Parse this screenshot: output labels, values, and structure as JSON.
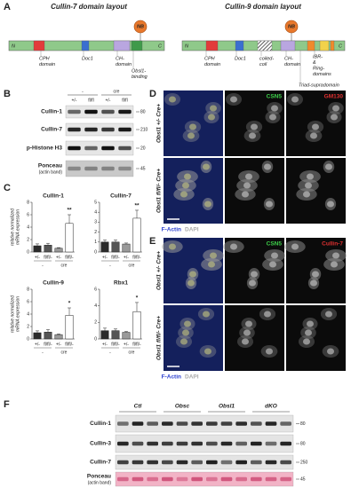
{
  "panel_labels": [
    "A",
    "B",
    "C",
    "D",
    "E",
    "F"
  ],
  "panel_a": [
    {
      "title": "Cullin-7 domain layout",
      "n": "N",
      "c": "C",
      "nb": "NB",
      "labels": [
        [
          "CPH",
          "domain"
        ],
        [
          "Doc1"
        ],
        [
          "CH-",
          "domain"
        ],
        [
          "Obsl1-",
          "binding"
        ]
      ]
    },
    {
      "title": "Cullin-9 domain layout",
      "n": "N",
      "c": "C",
      "nb": "NB",
      "labels": [
        [
          "CPH",
          "domain"
        ],
        [
          "Doc1"
        ],
        [
          "coiled-",
          "coil"
        ],
        [
          "CH-",
          "domain"
        ],
        [
          "IBR-",
          "&",
          "Ring-",
          "domains"
        ],
        [
          "Triad-supradomain"
        ]
      ]
    }
  ],
  "panel_b": {
    "groups": [
      "-",
      "cre"
    ],
    "genotypes": [
      "+/-",
      "fl/fl",
      "+/-",
      "fl/fl"
    ],
    "rows": [
      {
        "label": "Cullin-1",
        "kda": 80
      },
      {
        "label": "Cullin-7",
        "kda": 210
      },
      {
        "label": "p-Histone H3",
        "kda": 20
      },
      {
        "label": "Ponceau",
        "sub": "(actin band)",
        "kda": 45
      }
    ]
  },
  "panel_c": {
    "ylabel": [
      "relative normalized",
      "mRNA expression"
    ],
    "genotypes": [
      "+/-",
      "fl/fl/-",
      "+/-",
      "fl/fl/-"
    ],
    "groups": [
      "-",
      "cre"
    ],
    "bar_colors": [
      "#2b2b2b",
      "#555555",
      "#9a9a9a",
      "#ffffff"
    ],
    "charts": [
      {
        "title": "Cullin-1",
        "values": [
          1,
          1.1,
          0.6,
          4.6
        ],
        "errors": [
          0.3,
          0.3,
          0.1,
          1.4
        ],
        "ylim": [
          0,
          8
        ],
        "yticks": [
          0,
          2,
          4,
          6,
          8
        ],
        "sig": "**"
      },
      {
        "title": "Cullin-7",
        "values": [
          1,
          1,
          0.8,
          3.4
        ],
        "errors": [
          0.2,
          0.2,
          0.1,
          0.8
        ],
        "ylim": [
          0,
          5
        ],
        "yticks": [
          0,
          1,
          2,
          3,
          4,
          5
        ],
        "sig": "**"
      },
      {
        "title": "Cullin-9",
        "values": [
          1,
          1.1,
          0.7,
          3.8
        ],
        "errors": [
          0.3,
          0.4,
          0.1,
          1.2
        ],
        "ylim": [
          0,
          8
        ],
        "yticks": [
          0,
          2,
          4,
          6,
          8
        ],
        "sig": "*"
      },
      {
        "title": "Rbx1",
        "values": [
          1,
          1,
          0.8,
          3.3
        ],
        "errors": [
          0.3,
          0.2,
          0.1,
          1.1
        ],
        "ylim": [
          0,
          6
        ],
        "yticks": [
          0,
          2,
          4,
          6
        ],
        "sig": "*"
      }
    ]
  },
  "panel_d": {
    "rows": [
      "Obsl1 +/- Cre+",
      "Obsl1 fl/fl/- Cre+"
    ],
    "channels": [
      "CSN5",
      "GM130"
    ],
    "legend": [
      "F-Actin",
      "DAPI"
    ]
  },
  "panel_e": {
    "rows": [
      "Obsl1 +/- Cre+",
      "Obsl1 fl/fl/- Cre+"
    ],
    "channels": [
      "CSN5",
      "Cullin-7"
    ],
    "legend": [
      "F-Actin",
      "DAPI"
    ]
  },
  "panel_f": {
    "columns": [
      "Ctl",
      "Obsc",
      "Obsl1",
      "dKO"
    ],
    "rows": [
      {
        "label": "Cullin-1",
        "kda": 80
      },
      {
        "label": "Cullin-3",
        "kda": 80
      },
      {
        "label": "Cullin-7",
        "kda": 250
      },
      {
        "label": "Ponceau",
        "sub": "(actin band)",
        "kda": 45
      }
    ]
  }
}
